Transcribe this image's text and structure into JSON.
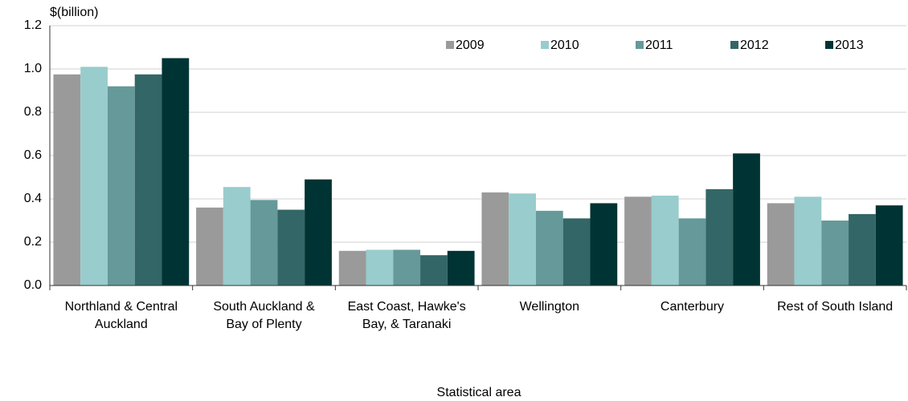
{
  "chart_data": {
    "type": "bar",
    "y_label": "$(billion)",
    "x_label": "Statistical area",
    "categories": [
      "Northland & Central Auckland",
      "South Auckland & Bay of Plenty",
      "East Coast, Hawke's Bay, & Taranaki",
      "Wellington",
      "Canterbury",
      "Rest of South Island"
    ],
    "series": [
      {
        "name": "2009",
        "color": "#9a9a9a",
        "values": [
          0.975,
          0.36,
          0.16,
          0.43,
          0.41,
          0.38
        ]
      },
      {
        "name": "2010",
        "color": "#99cccc",
        "values": [
          1.01,
          0.455,
          0.165,
          0.425,
          0.415,
          0.41
        ]
      },
      {
        "name": "2011",
        "color": "#669999",
        "values": [
          0.92,
          0.395,
          0.165,
          0.345,
          0.31,
          0.3
        ]
      },
      {
        "name": "2012",
        "color": "#336666",
        "values": [
          0.975,
          0.35,
          0.14,
          0.31,
          0.445,
          0.33
        ]
      },
      {
        "name": "2013",
        "color": "#003333",
        "values": [
          1.05,
          0.49,
          0.16,
          0.38,
          0.61,
          0.37
        ]
      }
    ],
    "ylim": [
      0,
      1.2
    ],
    "yticks": [
      {
        "value": 0,
        "label": "0.0"
      },
      0.2,
      0.4,
      0.6,
      0.8,
      {
        "value": 1,
        "label": "1.0"
      },
      1.2
    ],
    "grid": true
  }
}
